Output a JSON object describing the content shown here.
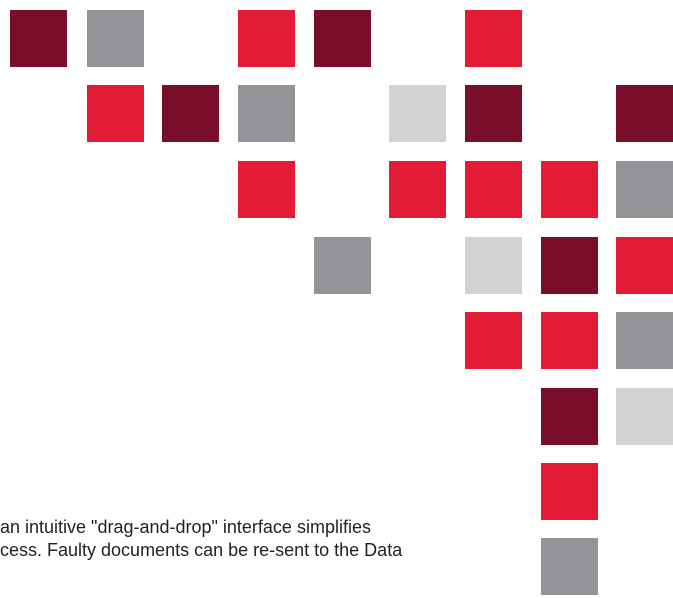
{
  "palette": {
    "maroon": "#7a0d2a",
    "red": "#e31b35",
    "gray": "#939598",
    "light_gray": "#d2d3d5",
    "text": "#231f20"
  },
  "caption": {
    "line1": "an intuitive \"drag-and-drop\" interface simplifies",
    "line2": "cess. Faulty documents can be re-sent to the Data"
  }
}
